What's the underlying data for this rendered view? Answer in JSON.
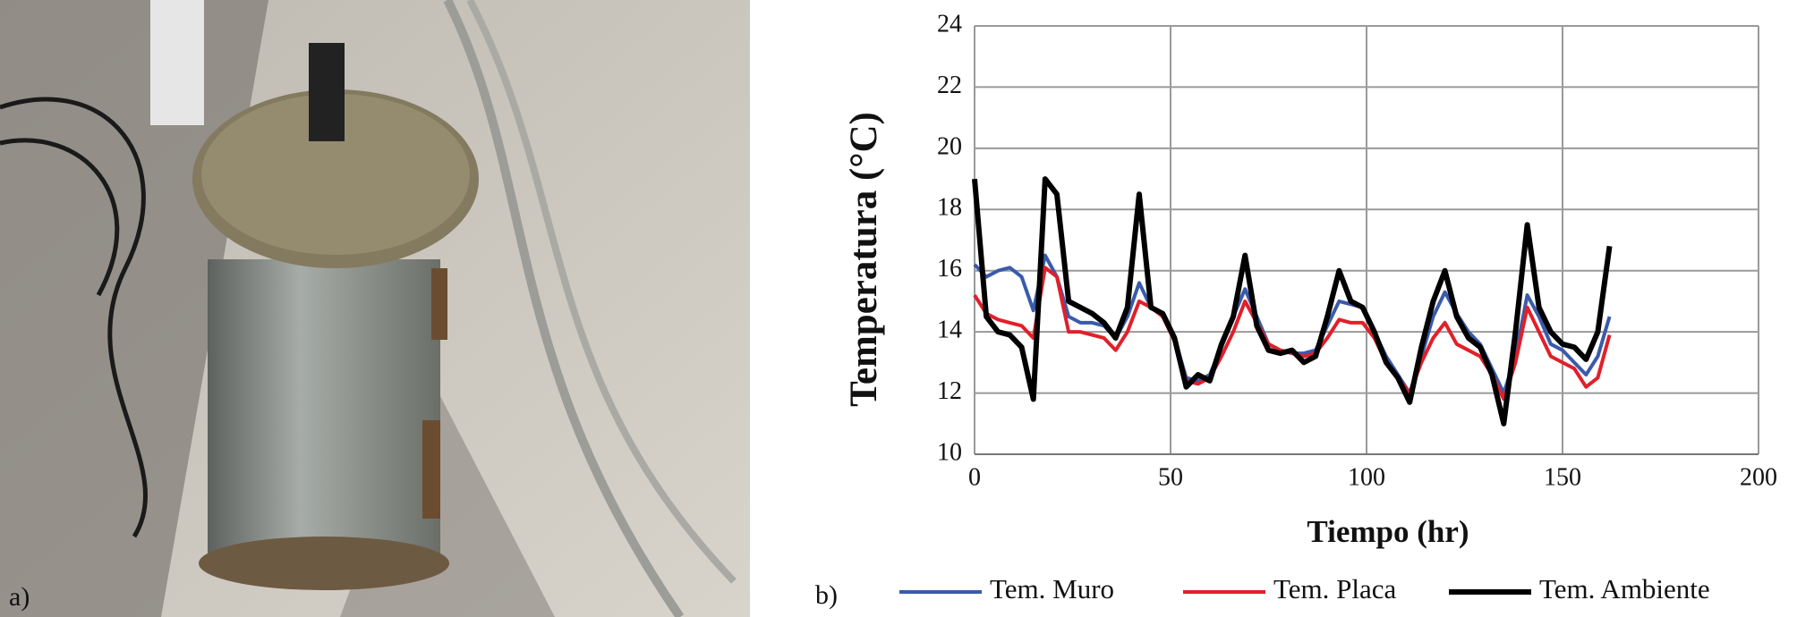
{
  "panels": {
    "a_label": "a)",
    "b_label": "b)"
  },
  "chart_data": {
    "type": "line",
    "xlabel": "Tiempo (hr)",
    "ylabel": "Temperatura (°C)",
    "x": [
      0,
      3,
      6,
      9,
      12,
      15,
      18,
      21,
      24,
      27,
      30,
      33,
      36,
      39,
      42,
      45,
      48,
      51,
      54,
      57,
      60,
      63,
      66,
      69,
      72,
      75,
      78,
      81,
      84,
      87,
      90,
      93,
      96,
      99,
      102,
      105,
      108,
      111,
      114,
      117,
      120,
      123,
      126,
      129,
      132,
      135,
      138,
      141,
      144,
      147,
      150,
      153,
      156,
      159,
      162
    ],
    "series": [
      {
        "name": "Tem. Muro",
        "color": "#3a5bab",
        "values": [
          16.2,
          15.8,
          16,
          16.1,
          15.8,
          14.7,
          16.5,
          15.8,
          14.5,
          14.3,
          14.3,
          14.2,
          13.8,
          14.5,
          15.6,
          14.8,
          14.6,
          13.8,
          12.5,
          12.4,
          12.6,
          13.5,
          14.5,
          15.4,
          14.5,
          13.6,
          13.4,
          13.3,
          13.3,
          13.4,
          14.2,
          15,
          14.9,
          14.8,
          14,
          13.2,
          12.6,
          12,
          13.2,
          14.5,
          15.3,
          14.6,
          14,
          13.6,
          12.8,
          12,
          13.2,
          15.2,
          14.5,
          13.6,
          13.4,
          13,
          12.6,
          13.2,
          14.5
        ]
      },
      {
        "name": "Tem. Placa",
        "color": "#e0202a",
        "values": [
          15.2,
          14.6,
          14.4,
          14.3,
          14.2,
          13.8,
          16.1,
          15.8,
          14,
          14,
          13.9,
          13.8,
          13.4,
          14,
          15,
          14.8,
          14.5,
          13.7,
          12.4,
          12.3,
          12.5,
          13.2,
          14,
          15,
          14.3,
          13.6,
          13.4,
          13.3,
          13.2,
          13.3,
          13.8,
          14.4,
          14.3,
          14.3,
          13.8,
          13,
          12.5,
          12,
          13,
          13.8,
          14.3,
          13.6,
          13.4,
          13.2,
          12.6,
          11.8,
          13,
          14.8,
          14,
          13.2,
          13,
          12.8,
          12.2,
          12.5,
          13.9
        ]
      },
      {
        "name": "Tem. Ambiente",
        "color": "#000000",
        "values": [
          19,
          14.5,
          14,
          13.9,
          13.5,
          11.8,
          19,
          18.5,
          15,
          14.8,
          14.6,
          14.3,
          13.8,
          14.8,
          18.5,
          14.8,
          14.6,
          13.8,
          12.2,
          12.6,
          12.4,
          13.6,
          14.5,
          16.5,
          14.2,
          13.4,
          13.3,
          13.4,
          13,
          13.2,
          14.5,
          16,
          15,
          14.8,
          14,
          13,
          12.5,
          11.7,
          13.5,
          15,
          16,
          14.5,
          13.8,
          13.5,
          12.6,
          11,
          14,
          17.5,
          14.8,
          14,
          13.6,
          13.5,
          13.1,
          14,
          16.8
        ]
      }
    ],
    "xlim": [
      0,
      200
    ],
    "xticks": [
      0,
      50,
      100,
      150,
      200
    ],
    "ylim": [
      10,
      24
    ],
    "yticks": [
      10,
      12,
      14,
      16,
      18,
      20,
      22,
      24
    ],
    "grid": true,
    "legend": "bottom"
  }
}
